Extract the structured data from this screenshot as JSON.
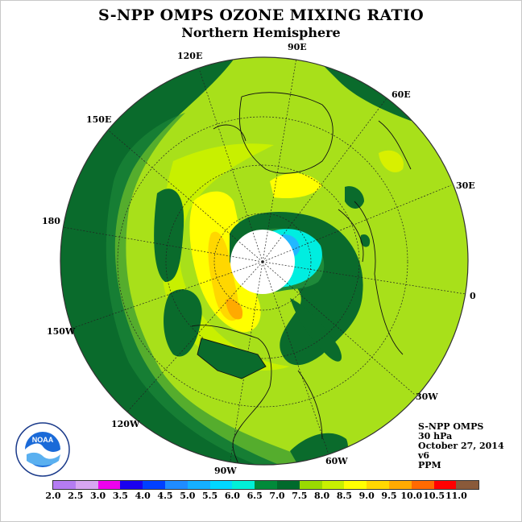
{
  "title": "S-NPP OMPS OZONE MIXING RATIO",
  "subtitle": "Northern Hemisphere",
  "longitude_labels": [
    "90E",
    "60E",
    "30E",
    "0",
    "30W",
    "60W",
    "90W",
    "120W",
    "150W",
    "180",
    "150E",
    "120E"
  ],
  "info": {
    "instrument": "S-NPP OMPS",
    "pressure": "30 hPa",
    "date": "October 27, 2014",
    "version": "v6",
    "units": "PPM"
  },
  "colorbar": {
    "ticks": [
      "2.0",
      "2.5",
      "3.0",
      "3.5",
      "4.0",
      "4.5",
      "5.0",
      "5.5",
      "6.0",
      "6.5",
      "7.0",
      "7.5",
      "8.0",
      "8.5",
      "9.0",
      "9.5",
      "10.0",
      "10.5",
      "11.0"
    ],
    "colors": [
      "#b57cf2",
      "#d8a6f2",
      "#ee00ee",
      "#1a00f0",
      "#0040ff",
      "#1f8cff",
      "#15b0ff",
      "#00d8ff",
      "#00f0d8",
      "#008a3a",
      "#006a2c",
      "#9ada00",
      "#c8f000",
      "#ffff00",
      "#ffd700",
      "#ffaa00",
      "#ff6a00",
      "#ff0000",
      "#8a5a3a"
    ]
  },
  "map_colors": {
    "background": "#a8e01a",
    "dark_green": "#0a6b2c",
    "mid_green": "#1e8a3a",
    "yellow_green": "#c8f000",
    "yellow": "#ffff00",
    "orange": "#ffb000",
    "cyan": "#00eee0",
    "sky": "#22b8ff",
    "polar_night": "#ffffff"
  },
  "logo": {
    "name": "NOAA",
    "ring_text": "NATIONAL OCEANIC AND ATMOSPHERIC ADMINISTRATION",
    "ring_text_bottom": "U.S. DEPARTMENT OF COMMERCE"
  }
}
